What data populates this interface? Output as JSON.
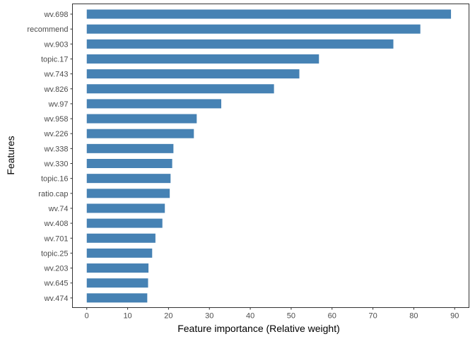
{
  "chart_data": {
    "type": "bar",
    "orientation": "horizontal",
    "xlabel": "Feature importance (Relative weight)",
    "ylabel": "Features",
    "xlim": [
      -3.5,
      93.5
    ],
    "xticks": [
      0,
      10,
      20,
      30,
      40,
      50,
      60,
      70,
      80,
      90
    ],
    "grid": false,
    "bar_color": "#4682B4",
    "categories": [
      "wv.698",
      "recommend",
      "wv.903",
      "topic.17",
      "wv.743",
      "wv.826",
      "wv.97",
      "wv.958",
      "wv.226",
      "wv.338",
      "wv.330",
      "topic.16",
      "ratio.cap",
      "wv.74",
      "wv.408",
      "wv.701",
      "topic.25",
      "wv.203",
      "wv.645",
      "wv.474"
    ],
    "values": [
      89.1,
      81.6,
      75.0,
      56.8,
      52.0,
      45.8,
      32.9,
      26.9,
      26.2,
      21.2,
      20.9,
      20.5,
      20.3,
      19.1,
      18.5,
      16.8,
      16.0,
      15.1,
      15.0,
      14.8
    ]
  }
}
